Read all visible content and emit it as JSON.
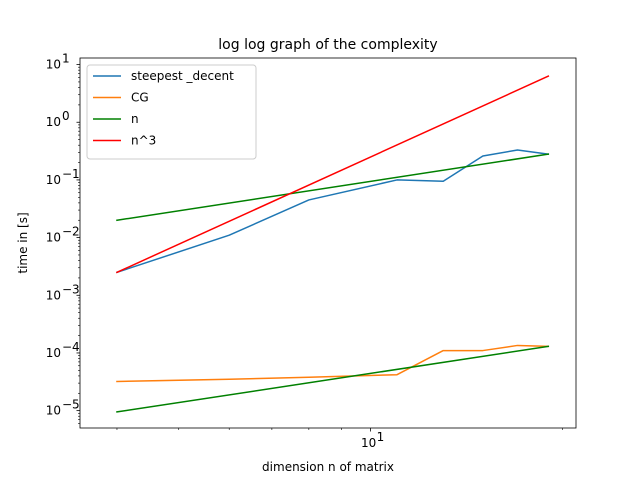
{
  "chart_data": {
    "type": "line",
    "title": "log log graph of the complexity",
    "xlabel": "dimension n of matrix",
    "ylabel": "time in [s]",
    "x_scale": "log",
    "y_scale": "log",
    "xlim": [
      3.5,
      21
    ],
    "ylim": [
      5e-06,
      13
    ],
    "x_ticks": [
      {
        "value": 10,
        "base": "10",
        "exp": "1"
      }
    ],
    "y_ticks": [
      {
        "value": 1e-05,
        "base": "10",
        "exp": "−5"
      },
      {
        "value": 0.0001,
        "base": "10",
        "exp": "−4"
      },
      {
        "value": 0.001,
        "base": "10",
        "exp": "−3"
      },
      {
        "value": 0.01,
        "base": "10",
        "exp": "−2"
      },
      {
        "value": 0.1,
        "base": "10",
        "exp": "−1"
      },
      {
        "value": 1,
        "base": "10",
        "exp": "0"
      },
      {
        "value": 10,
        "base": "10",
        "exp": "1"
      }
    ],
    "grid": false,
    "legend_position": "top-left",
    "series": [
      {
        "name": "steepest _decent",
        "color": "#1f77b4",
        "x": [
          4,
          6,
          8,
          11,
          13,
          15,
          17,
          19
        ],
        "y": [
          0.0025,
          0.011,
          0.045,
          0.1,
          0.095,
          0.26,
          0.33,
          0.28
        ]
      },
      {
        "name": "CG",
        "color": "#ff7f0e",
        "x": [
          4,
          6,
          8,
          11,
          13,
          15,
          17,
          19
        ],
        "y": [
          3.2e-05,
          3.5e-05,
          3.8e-05,
          4.2e-05,
          0.00011,
          0.00011,
          0.000135,
          0.00013
        ]
      },
      {
        "name": "n",
        "color": "#008000",
        "x": [
          4,
          19
        ],
        "y": [
          0.02,
          0.28
        ]
      },
      {
        "name": "n",
        "color": "#008000",
        "in_legend": false,
        "x": [
          4,
          19
        ],
        "y": [
          9.5e-06,
          0.00013
        ]
      },
      {
        "name": "n^3",
        "color": "#ff0000",
        "x": [
          4,
          19
        ],
        "y": [
          0.0025,
          6.3
        ]
      }
    ]
  }
}
